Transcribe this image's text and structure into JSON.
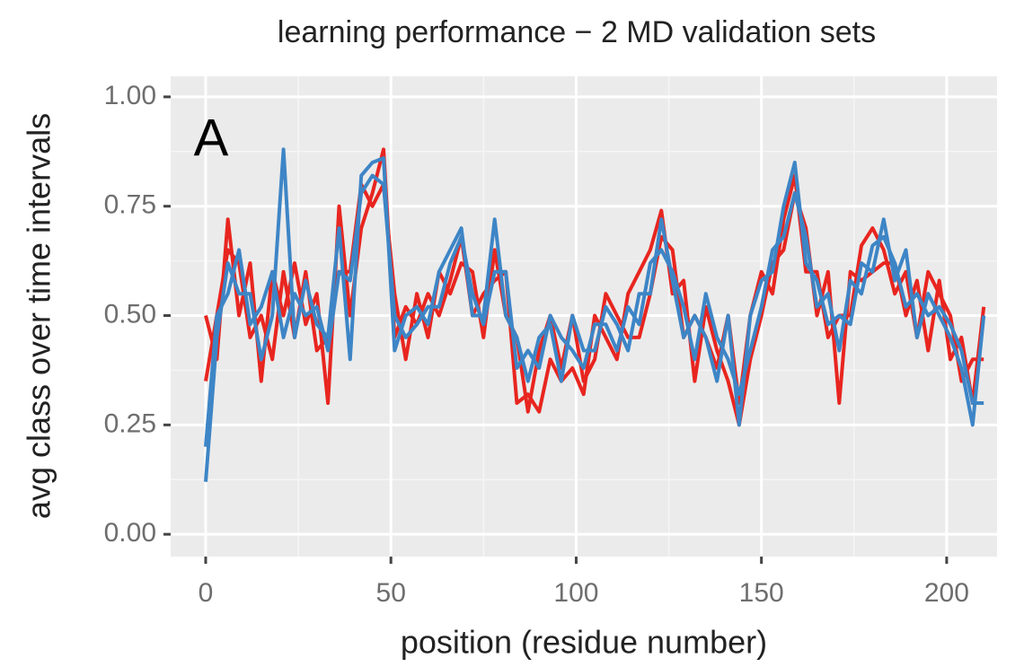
{
  "chart_data": {
    "type": "line",
    "title": "learning performance − 2 MD validation sets",
    "annotation": "A",
    "xlabel": "position (residue number)",
    "ylabel": "avg class over time intervals",
    "x": [
      0,
      3,
      6,
      9,
      12,
      15,
      18,
      21,
      24,
      27,
      30,
      33,
      36,
      39,
      42,
      45,
      48,
      51,
      54,
      57,
      60,
      63,
      66,
      69,
      72,
      75,
      78,
      81,
      84,
      87,
      90,
      93,
      96,
      99,
      102,
      105,
      108,
      111,
      114,
      117,
      120,
      123,
      126,
      129,
      132,
      135,
      138,
      141,
      144,
      147,
      150,
      153,
      156,
      159,
      162,
      165,
      168,
      171,
      174,
      177,
      180,
      183,
      186,
      189,
      192,
      195,
      198,
      201,
      204,
      207,
      210
    ],
    "series": [
      {
        "color": "#e8251f",
        "values": [
          0.5,
          0.4,
          0.72,
          0.5,
          0.62,
          0.35,
          0.6,
          0.5,
          0.62,
          0.48,
          0.55,
          0.3,
          0.75,
          0.5,
          0.7,
          0.78,
          0.88,
          0.45,
          0.52,
          0.48,
          0.55,
          0.5,
          0.58,
          0.68,
          0.5,
          0.55,
          0.58,
          0.6,
          0.3,
          0.32,
          0.28,
          0.4,
          0.35,
          0.38,
          0.32,
          0.5,
          0.45,
          0.4,
          0.55,
          0.6,
          0.65,
          0.74,
          0.55,
          0.58,
          0.35,
          0.52,
          0.42,
          0.35,
          0.25,
          0.4,
          0.5,
          0.62,
          0.65,
          0.78,
          0.7,
          0.5,
          0.6,
          0.3,
          0.6,
          0.58,
          0.6,
          0.62,
          0.62,
          0.5,
          0.58,
          0.42,
          0.58,
          0.4,
          0.45,
          0.3,
          0.52
        ]
      },
      {
        "color": "#e8251f",
        "values": [
          0.35,
          0.5,
          0.65,
          0.62,
          0.45,
          0.5,
          0.4,
          0.6,
          0.45,
          0.6,
          0.42,
          0.45,
          0.6,
          0.6,
          0.8,
          0.75,
          0.8,
          0.55,
          0.4,
          0.55,
          0.45,
          0.6,
          0.55,
          0.62,
          0.6,
          0.45,
          0.65,
          0.5,
          0.45,
          0.28,
          0.42,
          0.5,
          0.38,
          0.5,
          0.35,
          0.4,
          0.55,
          0.5,
          0.45,
          0.45,
          0.55,
          0.68,
          0.65,
          0.45,
          0.5,
          0.45,
          0.38,
          0.5,
          0.3,
          0.5,
          0.6,
          0.55,
          0.72,
          0.82,
          0.6,
          0.6,
          0.45,
          0.5,
          0.5,
          0.66,
          0.7,
          0.65,
          0.55,
          0.6,
          0.45,
          0.6,
          0.55,
          0.5,
          0.35,
          0.4,
          0.4
        ]
      },
      {
        "color": "#3d85c6",
        "values": [
          0.12,
          0.45,
          0.62,
          0.55,
          0.55,
          0.4,
          0.5,
          0.88,
          0.45,
          0.58,
          0.48,
          0.45,
          0.7,
          0.4,
          0.82,
          0.85,
          0.86,
          0.42,
          0.5,
          0.52,
          0.48,
          0.6,
          0.65,
          0.7,
          0.5,
          0.5,
          0.72,
          0.5,
          0.45,
          0.35,
          0.45,
          0.48,
          0.35,
          0.5,
          0.42,
          0.42,
          0.52,
          0.48,
          0.42,
          0.55,
          0.55,
          0.72,
          0.58,
          0.45,
          0.5,
          0.45,
          0.35,
          0.5,
          0.25,
          0.5,
          0.58,
          0.6,
          0.75,
          0.85,
          0.62,
          0.58,
          0.48,
          0.5,
          0.48,
          0.62,
          0.6,
          0.72,
          0.58,
          0.65,
          0.45,
          0.55,
          0.5,
          0.45,
          0.38,
          0.25,
          0.5
        ]
      },
      {
        "color": "#3d85c6",
        "values": [
          0.2,
          0.5,
          0.55,
          0.65,
          0.48,
          0.52,
          0.6,
          0.45,
          0.55,
          0.5,
          0.52,
          0.42,
          0.6,
          0.58,
          0.78,
          0.82,
          0.8,
          0.5,
          0.45,
          0.48,
          0.52,
          0.52,
          0.62,
          0.68,
          0.55,
          0.48,
          0.6,
          0.6,
          0.38,
          0.42,
          0.38,
          0.5,
          0.45,
          0.42,
          0.38,
          0.48,
          0.48,
          0.42,
          0.52,
          0.48,
          0.62,
          0.65,
          0.6,
          0.52,
          0.4,
          0.55,
          0.45,
          0.4,
          0.32,
          0.42,
          0.52,
          0.65,
          0.68,
          0.78,
          0.68,
          0.52,
          0.55,
          0.42,
          0.58,
          0.55,
          0.66,
          0.68,
          0.62,
          0.52,
          0.55,
          0.5,
          0.52,
          0.48,
          0.42,
          0.3,
          0.3
        ]
      }
    ],
    "xlim": [
      -9.45,
      213.6
    ],
    "ylim": [
      -0.051,
      1.047
    ],
    "xticks": [
      0,
      50,
      100,
      150,
      200
    ],
    "yticks": [
      {
        "value": 0,
        "label": "0.00"
      },
      {
        "value": 0.25,
        "label": "0.25"
      },
      {
        "value": 0.5,
        "label": "0.50"
      },
      {
        "value": 0.75,
        "label": "0.75"
      },
      {
        "value": 1,
        "label": "1.00"
      }
    ],
    "xminor": [
      25,
      75,
      125,
      175
    ],
    "yminor": [
      0.125,
      0.375,
      0.625,
      0.875
    ],
    "grid": true
  }
}
